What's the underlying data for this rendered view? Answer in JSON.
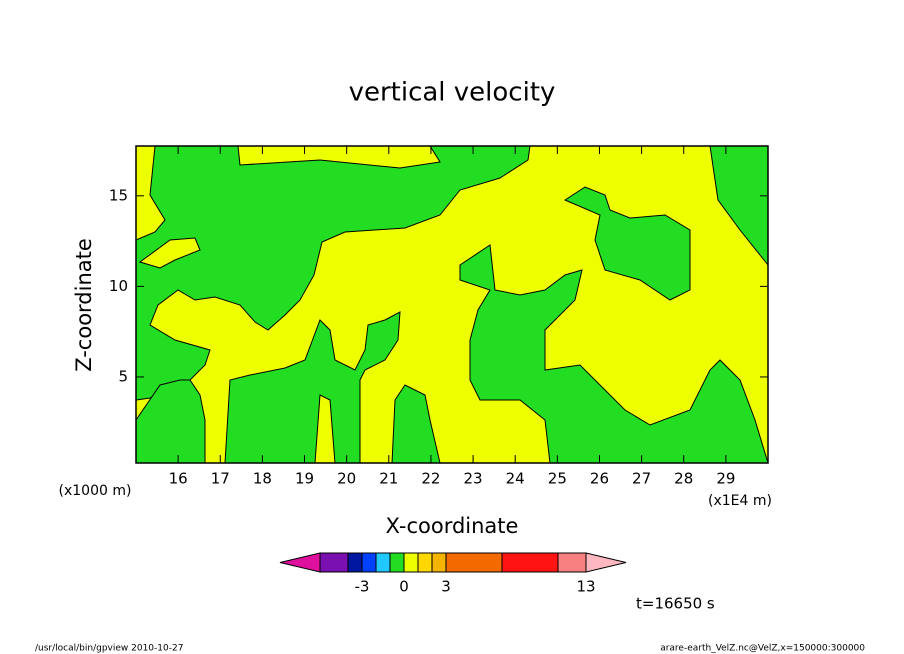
{
  "chart_data": {
    "type": "contour",
    "title": "vertical velocity",
    "xlabel": "X-coordinate",
    "ylabel": "Z-coordinate",
    "x_unit_left": "(x1000 m)",
    "x_unit_right": "(x1E4 m)",
    "xlim": [
      15,
      30
    ],
    "xticks": [
      16,
      17,
      18,
      19,
      20,
      21,
      22,
      23,
      24,
      25,
      26,
      27,
      28,
      29
    ],
    "ylim": [
      0.25,
      17.75
    ],
    "yticks": [
      5,
      10,
      15
    ],
    "colorbar": {
      "levels": [
        -6,
        -4,
        -3,
        -2,
        -1,
        0,
        1,
        2,
        3,
        7,
        11,
        13
      ],
      "colors": [
        "#e0109f",
        "#7a10b0",
        "#0018a0",
        "#0040ff",
        "#20c8ff",
        "#22dd22",
        "#eeff00",
        "#ffd800",
        "#f5b400",
        "#f26a00",
        "#ff1414",
        "#f88080",
        "#ffb8c0"
      ],
      "ticks": [
        -3,
        0,
        3,
        13
      ]
    },
    "annotation": "t=16650 s",
    "footer_left": "/usr/local/bin/gpview   2010-10-27",
    "footer_right": "arare-earth_VelZ.nc@VelZ,x=150000:300000"
  }
}
